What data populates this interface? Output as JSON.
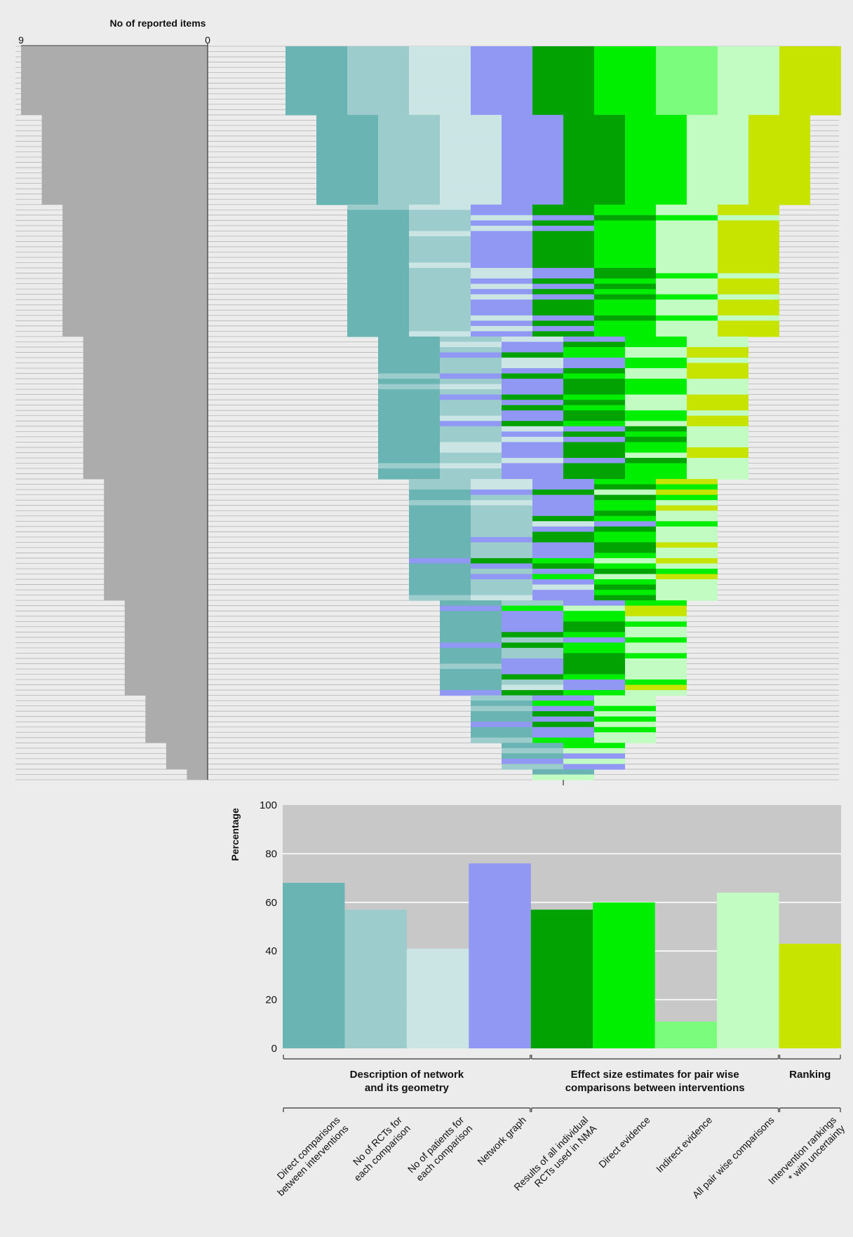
{
  "chart_data": [
    {
      "type": "bar",
      "title": "No of reported items",
      "xlim_left": "9",
      "xlim_right": "0",
      "ticks": [
        "9",
        "0"
      ],
      "star_note": "* with uncertainty",
      "distribution": [
        {
          "items": 9,
          "studies": 13
        },
        {
          "items": 8,
          "studies": 17
        },
        {
          "items": 7,
          "studies": 25
        },
        {
          "items": 6,
          "studies": 27
        },
        {
          "items": 5,
          "studies": 23
        },
        {
          "items": 4,
          "studies": 18
        },
        {
          "items": 3,
          "studies": 9
        },
        {
          "items": 2,
          "studies": 5
        },
        {
          "items": 1,
          "studies": 2
        }
      ]
    },
    {
      "type": "bar",
      "ylabel": "Percentage",
      "ylim": [
        0,
        100
      ],
      "yticks": [
        "0",
        "20",
        "40",
        "60",
        "80",
        "100"
      ],
      "categories": [
        "Direct comparisons between interventions",
        "No of RCTs for each comparison",
        "No of patients for each comparison",
        "Network graph",
        "Results of all individual RCTs used in NMA",
        "Direct evidence",
        "Indirect evidence",
        "All pair wise comparisons",
        "Intervention rankings * with uncertainty"
      ],
      "labels": [
        [
          "Direct comparisons",
          "between interventions"
        ],
        [
          "No of RCTs for",
          "each comparison"
        ],
        [
          "No of patients for",
          "each comparison"
        ],
        [
          "Network graph"
        ],
        [
          "Results of all individual",
          "RCTs used in NMA"
        ],
        [
          "Direct evidence"
        ],
        [
          "Indirect evidence"
        ],
        [
          "All pair wise comparisons"
        ],
        [
          "Intervention rankings",
          "* with uncertainty"
        ]
      ],
      "values": [
        68,
        57,
        41,
        76,
        57,
        60,
        11,
        64,
        43
      ],
      "colors": [
        "#6ab4b4",
        "#9ccccc",
        "#cbe5e5",
        "#9098f4",
        "#02a202",
        "#00ee00",
        "#7cfc7c",
        "#c2fcc2",
        "#c6e400"
      ],
      "groups": [
        {
          "label": [
            "Description of network",
            "and its geometry"
          ],
          "start": 0,
          "end": 3
        },
        {
          "label": [
            "Effect size estimates for pair wise",
            "comparisons between interventions"
          ],
          "start": 4,
          "end": 7
        },
        {
          "label": [
            "Ranking"
          ],
          "start": 8,
          "end": 8
        }
      ]
    }
  ]
}
